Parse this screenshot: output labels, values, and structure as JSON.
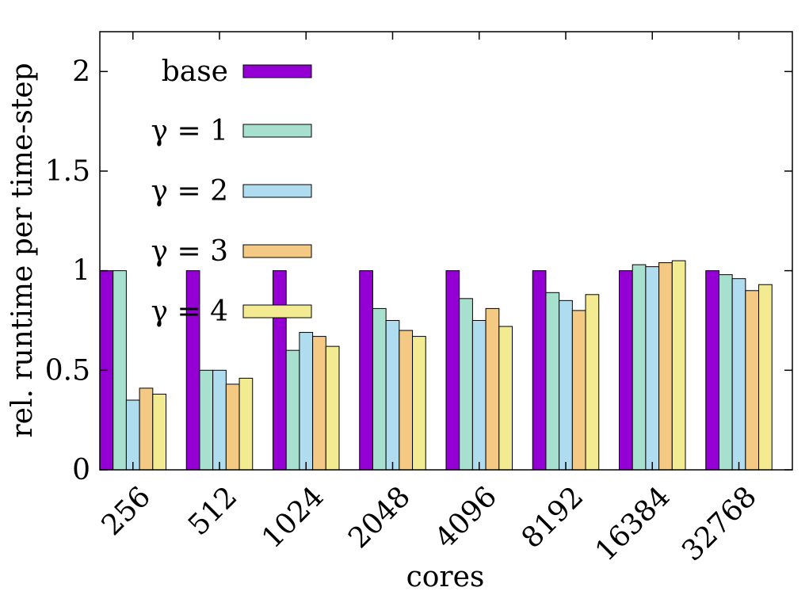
{
  "chart_data": {
    "type": "bar",
    "xlabel": "cores",
    "ylabel": "rel. runtime per time-step",
    "ylim": [
      0,
      2.2
    ],
    "yticks": [
      0,
      0.5,
      1,
      1.5,
      2
    ],
    "ytick_labels": [
      "0",
      "0.5",
      "1",
      "1.5",
      "2"
    ],
    "categories": [
      "256",
      "512",
      "1024",
      "2048",
      "4096",
      "8192",
      "16384",
      "32768"
    ],
    "legend_position": "top-left",
    "series": [
      {
        "name": "base",
        "color": "#9400D3",
        "values": [
          1,
          1,
          1,
          1,
          1,
          1,
          1,
          1
        ]
      },
      {
        "name": "γ = 1",
        "color": "#A8E0CF",
        "values": [
          1.0,
          0.5,
          0.6,
          0.81,
          0.86,
          0.89,
          1.03,
          0.98
        ]
      },
      {
        "name": "γ = 2",
        "color": "#B0DCF0",
        "values": [
          0.35,
          0.5,
          0.69,
          0.75,
          0.75,
          0.85,
          1.02,
          0.96
        ]
      },
      {
        "name": "γ = 3",
        "color": "#F3C983",
        "values": [
          0.41,
          0.43,
          0.67,
          0.7,
          0.81,
          0.8,
          1.04,
          0.9
        ]
      },
      {
        "name": "γ = 4",
        "color": "#F3EB92",
        "values": [
          0.38,
          0.46,
          0.62,
          0.67,
          0.72,
          0.88,
          1.05,
          0.93
        ]
      }
    ]
  }
}
